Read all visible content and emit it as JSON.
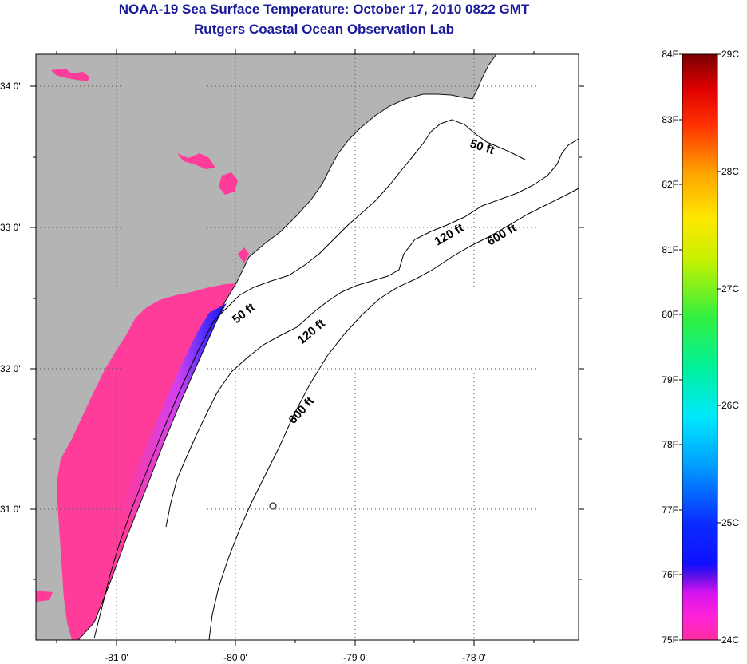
{
  "title_line1": "NOAA-19 Sea Surface Temperature:  October 17, 2010 0822 GMT",
  "title_line2": "Rutgers Coastal Ocean Observation Lab",
  "map": {
    "lat_labels": [
      "34 0'",
      "33 0'",
      "32 0'",
      "31 0'"
    ],
    "lon_labels": [
      "-81 0'",
      "-80 0'",
      "-79 0'",
      "-78 0'"
    ],
    "contour_labels": {
      "c50_north": "50 ft",
      "c50_south": "50 ft",
      "c120_north": "120 ft",
      "c120_south": "120 ft",
      "c600_north": "600 ft",
      "c600_south": "600 ft"
    },
    "colors": {
      "land": "#b4b4b4",
      "water_sst": "#ff3c9a",
      "cold_band": "#1a1ae8",
      "no_data": "#ffffff"
    }
  },
  "colorbar": {
    "fahrenheit": [
      "84F",
      "83F",
      "82F",
      "81F",
      "80F",
      "79F",
      "78F",
      "77F",
      "76F",
      "75F"
    ],
    "celsius": [
      "29C",
      "28C",
      "27C",
      "26C",
      "25C",
      "24C"
    ]
  }
}
